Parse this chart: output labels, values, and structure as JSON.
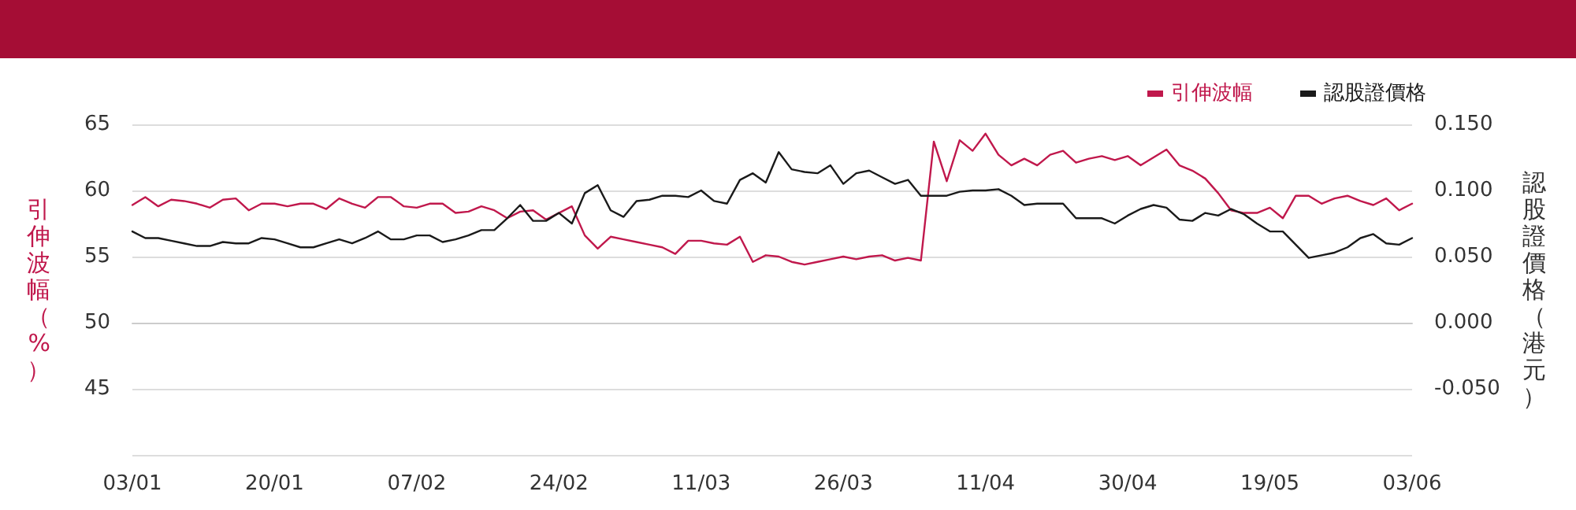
{
  "chart_data": {
    "type": "line",
    "ylabel": "引伸波幅（%）",
    "y2label": "認股證價格（港元）",
    "categories": [
      "03/01",
      null,
      null,
      null,
      null,
      null,
      null,
      null,
      null,
      null,
      null,
      "20/01",
      null,
      null,
      null,
      null,
      null,
      null,
      null,
      null,
      null,
      null,
      "07/02",
      null,
      null,
      null,
      null,
      null,
      null,
      null,
      null,
      null,
      null,
      "24/02",
      null,
      null,
      null,
      null,
      null,
      null,
      null,
      null,
      null,
      null,
      "11/03",
      null,
      null,
      null,
      null,
      null,
      null,
      null,
      null,
      null,
      null,
      "26/03",
      null,
      null,
      null,
      null,
      null,
      null,
      null,
      null,
      null,
      null,
      "11/04",
      null,
      null,
      null,
      null,
      null,
      null,
      null,
      null,
      null,
      null,
      "30/04",
      null,
      null,
      null,
      null,
      null,
      null,
      null,
      null,
      null,
      null,
      "19/05",
      null,
      null,
      null,
      null,
      null,
      null,
      null,
      null,
      null,
      null,
      "03/06"
    ],
    "series": [
      {
        "name": "引伸波幅",
        "color": "#c0184c",
        "values": [
          58.9,
          59.5,
          58.8,
          59.3,
          59.2,
          59.0,
          58.7,
          59.3,
          59.4,
          58.5,
          59.0,
          59.0,
          58.8,
          59.0,
          59.0,
          58.6,
          59.4,
          59.0,
          58.7,
          59.5,
          59.5,
          58.8,
          58.7,
          59.0,
          59.0,
          58.3,
          58.4,
          58.8,
          58.5,
          57.9,
          58.4,
          58.5,
          57.8,
          58.3,
          58.8,
          56.6,
          55.6,
          56.5,
          56.3,
          56.1,
          55.9,
          55.7,
          55.2,
          56.2,
          56.2,
          56.0,
          55.9,
          56.5,
          54.6,
          55.1,
          55.0,
          54.6,
          54.4,
          54.6,
          54.8,
          55.0,
          54.8,
          55.0,
          55.1,
          54.7,
          54.9,
          54.7,
          63.7,
          60.7,
          63.8,
          63.0,
          64.3,
          62.7,
          61.9,
          62.4,
          61.9,
          62.7,
          63.0,
          62.1,
          62.4,
          62.6,
          62.3,
          62.6,
          61.9,
          62.5,
          63.1,
          61.9,
          61.5,
          60.9,
          59.8,
          58.5,
          58.3,
          58.3,
          58.7,
          57.9,
          59.6,
          59.6,
          59.0,
          59.4,
          59.6,
          59.2,
          58.9,
          59.4,
          58.5,
          59.0
        ]
      },
      {
        "name": "認股證價格",
        "color": "#1a1a1a",
        "axis": "y2",
        "values": [
          0.069,
          0.064,
          0.064,
          0.062,
          0.06,
          0.058,
          0.058,
          0.061,
          0.06,
          0.06,
          0.064,
          0.063,
          0.06,
          0.057,
          0.057,
          0.06,
          0.063,
          0.06,
          0.064,
          0.069,
          0.063,
          0.063,
          0.066,
          0.066,
          0.061,
          0.063,
          0.066,
          0.07,
          0.07,
          0.079,
          0.089,
          0.077,
          0.077,
          0.083,
          0.075,
          0.098,
          0.104,
          0.085,
          0.08,
          0.092,
          0.093,
          0.096,
          0.096,
          0.095,
          0.1,
          0.092,
          0.09,
          0.108,
          0.113,
          0.106,
          0.129,
          0.116,
          0.114,
          0.113,
          0.119,
          0.105,
          0.113,
          0.115,
          0.11,
          0.105,
          0.108,
          0.096,
          0.096,
          0.096,
          0.099,
          0.1,
          0.1,
          0.101,
          0.096,
          0.089,
          0.09,
          0.09,
          0.09,
          0.079,
          0.079,
          0.079,
          0.075,
          0.081,
          0.086,
          0.089,
          0.087,
          0.078,
          0.077,
          0.083,
          0.081,
          0.086,
          0.082,
          0.075,
          0.069,
          0.069,
          0.059,
          0.049,
          0.051,
          0.053,
          0.057,
          0.064,
          0.067,
          0.06,
          0.059,
          0.064
        ]
      }
    ],
    "ylim": [
      40,
      65
    ],
    "yticks": [
      {
        "value": 40,
        "label": null
      },
      45,
      50,
      55,
      60,
      65
    ],
    "y2lim": [
      -0.1,
      0.15
    ],
    "y2ticks": [
      {
        "value": -0.1,
        "label": null
      },
      {
        "value": -0.05,
        "label": "-0.050"
      },
      {
        "value": 0,
        "label": "0.000"
      },
      {
        "value": 0.05,
        "label": "0.050"
      },
      {
        "value": 0.1,
        "label": "0.100"
      },
      {
        "value": 0.15,
        "label": "0.150"
      }
    ],
    "grid": "y",
    "legend": "top right",
    "marker": "none",
    "line_style": "solid"
  }
}
